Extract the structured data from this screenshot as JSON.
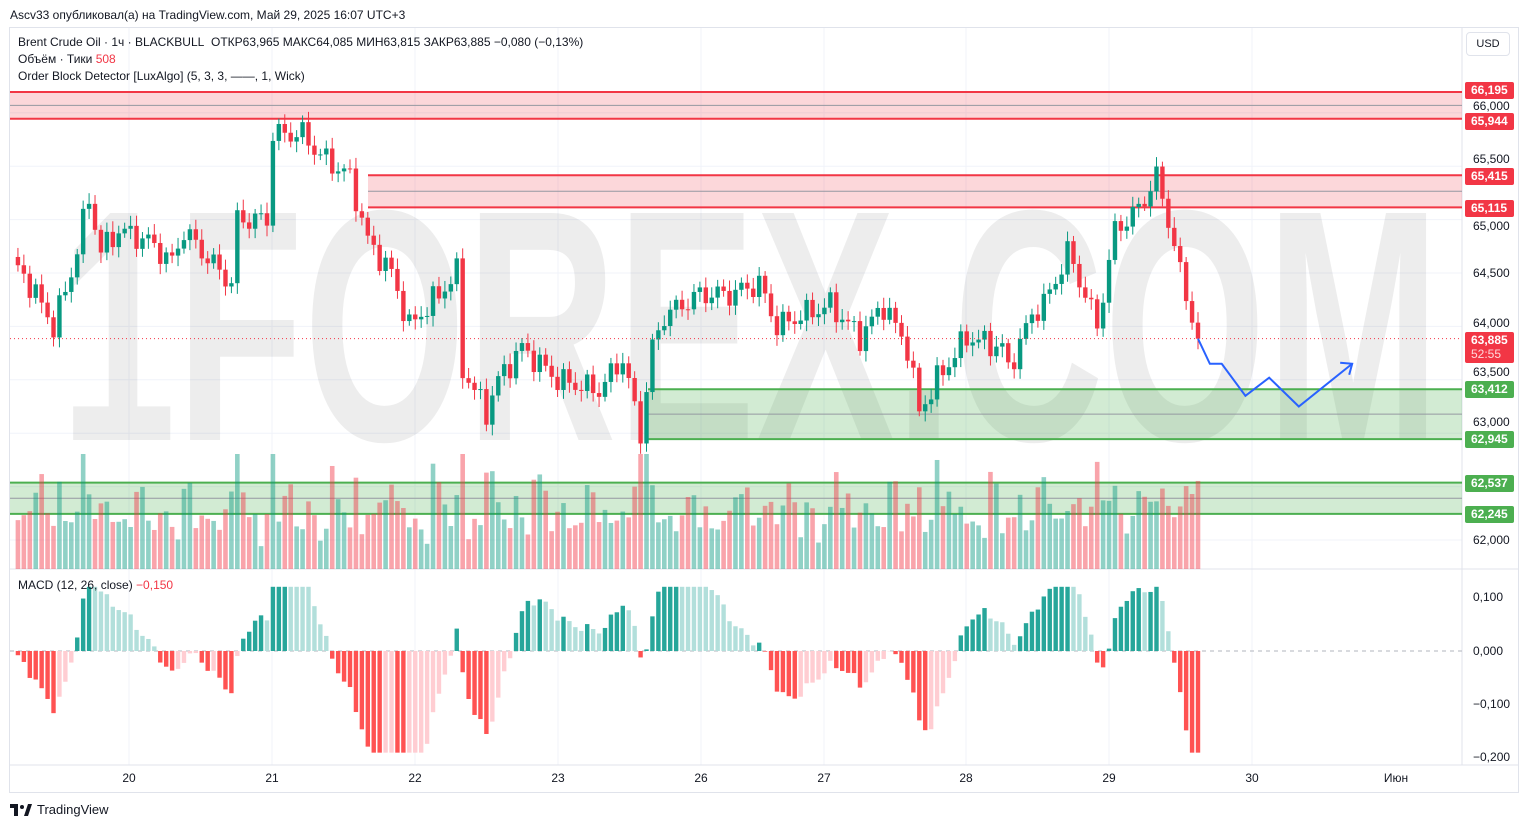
{
  "published": "Ascv33 опубликовал(а) на TradingView.com, Май 29, 2025 16:07 UTC+3",
  "legend": {
    "symbol": "Brent Crude Oil · 1ч · BLACKBULL",
    "ohlc": "ОТКР63,965  МАКС64,085  МИН63,815  ЗАКР63,885  −0,080 (−0,13%)",
    "volume_label": "Объём · Тики",
    "volume_value": "508",
    "indicator": "Order Block Detector [LuxAlgo] (5, 3, 3, ——, 1, Wick)",
    "macd_label": "MACD (12, 26, close)",
    "macd_value": "−0,150"
  },
  "currency": "USD",
  "watermark": "1FOREX.COM",
  "colors": {
    "up": "#089981",
    "down": "#f23645",
    "bear_block": "#f23645",
    "bull_block": "#4caf50",
    "forecast": "#2962ff"
  },
  "price_axis": [
    "66,000",
    "65,500",
    "65,000",
    "64,500",
    "64,000",
    "63,500",
    "63,000",
    "62,000"
  ],
  "price_labels": {
    "ob1_top": "66,195",
    "ob1_bot": "65,944",
    "ob2_top": "65,415",
    "ob2_bot": "65,115",
    "last": "63,885",
    "countdown": "52:55",
    "ob3_top": "63,412",
    "ob3_bot": "62,945",
    "ob4_top": "62,537",
    "ob4_bot": "62,245"
  },
  "macd_axis": [
    "0,100",
    "0,000",
    "−0,100",
    "−0,200"
  ],
  "date_axis": [
    "20",
    "21",
    "22",
    "23",
    "26",
    "27",
    "28",
    "29",
    "30",
    "Июн"
  ],
  "footer": "TradingView",
  "chart_data": {
    "type": "candlestick",
    "title": "Brent Crude Oil · 1ч · BLACKBULL",
    "last_close": 63.885,
    "order_blocks": [
      {
        "type": "bearish",
        "top": 66.195,
        "bottom": 65.944
      },
      {
        "type": "bearish",
        "top": 65.415,
        "bottom": 65.115
      },
      {
        "type": "bullish",
        "top": 63.412,
        "bottom": 62.945
      },
      {
        "type": "bullish",
        "top": 62.537,
        "bottom": 62.245
      }
    ],
    "close_path": [
      [
        0,
        64.6
      ],
      [
        3,
        64.4
      ],
      [
        7,
        64.0
      ],
      [
        10,
        64.5
      ],
      [
        13,
        65.2
      ],
      [
        15,
        64.7
      ],
      [
        18,
        64.9
      ],
      [
        23,
        64.8
      ],
      [
        27,
        64.6
      ],
      [
        29,
        64.9
      ],
      [
        32,
        64.7
      ],
      [
        37,
        64.4
      ],
      [
        38,
        65.0
      ],
      [
        43,
        65.0
      ],
      [
        44,
        65.8
      ],
      [
        49,
        65.8
      ],
      [
        52,
        65.6
      ],
      [
        57,
        65.4
      ],
      [
        60,
        64.8
      ],
      [
        64,
        64.5
      ],
      [
        67,
        64.0
      ],
      [
        72,
        64.3
      ],
      [
        75,
        64.5
      ],
      [
        76,
        63.6
      ],
      [
        80,
        63.2
      ],
      [
        82,
        63.5
      ],
      [
        86,
        63.8
      ],
      [
        90,
        63.6
      ],
      [
        92,
        63.5
      ],
      [
        99,
        63.4
      ],
      [
        103,
        63.7
      ],
      [
        106,
        63.0
      ],
      [
        108,
        63.8
      ],
      [
        110,
        64.1
      ],
      [
        116,
        64.3
      ],
      [
        121,
        64.3
      ],
      [
        126,
        64.4
      ],
      [
        129,
        64.0
      ],
      [
        133,
        64.1
      ],
      [
        138,
        64.2
      ],
      [
        143,
        63.9
      ],
      [
        147,
        64.2
      ],
      [
        151,
        63.8
      ],
      [
        153,
        63.2
      ],
      [
        156,
        63.5
      ],
      [
        161,
        63.9
      ],
      [
        167,
        63.8
      ],
      [
        168,
        63.6
      ],
      [
        172,
        64.1
      ],
      [
        175,
        64.3
      ],
      [
        178,
        64.7
      ],
      [
        181,
        64.3
      ],
      [
        183,
        64.0
      ],
      [
        186,
        64.9
      ],
      [
        190,
        65.1
      ],
      [
        193,
        65.4
      ],
      [
        195,
        65.0
      ],
      [
        197,
        64.5
      ],
      [
        200,
        63.885
      ]
    ],
    "forecast_path": [
      [
        200,
        63.885
      ],
      [
        202,
        63.65
      ],
      [
        204,
        63.65
      ],
      [
        208,
        63.35
      ],
      [
        212,
        63.52
      ],
      [
        217,
        63.25
      ],
      [
        226,
        63.65
      ]
    ]
  }
}
